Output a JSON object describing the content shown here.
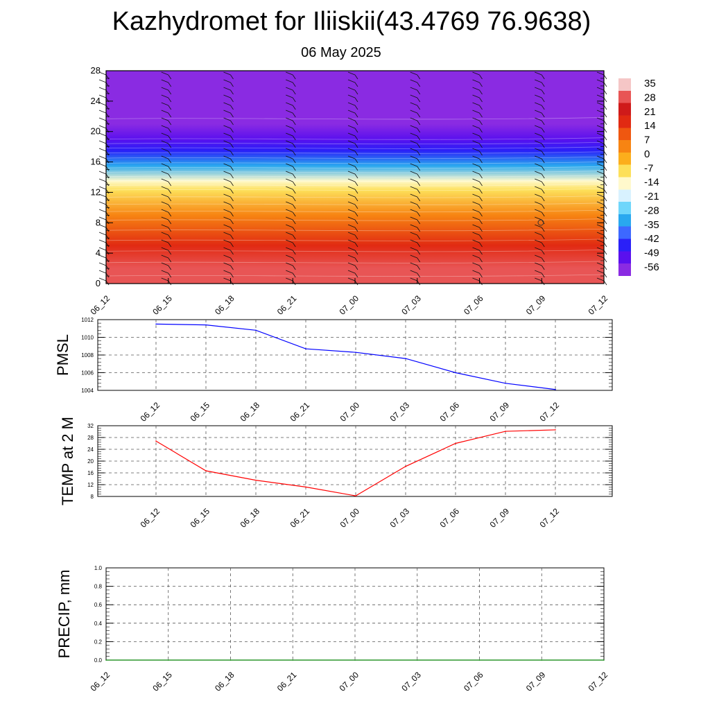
{
  "title": "Kazhydromet for Iliiskii(43.4769 76.9638)",
  "date": "06 May 2025",
  "chart_data": [
    {
      "type": "heatmap",
      "x": [
        "06_12",
        "06_15",
        "06_18",
        "06_21",
        "07_00",
        "07_03",
        "07_06",
        "07_09",
        "07_12"
      ],
      "ylim": [
        0,
        28
      ],
      "yticks": [
        "0",
        "4",
        "8",
        "12",
        "16",
        "20",
        "24",
        "28"
      ],
      "colorbar_labels": [
        "35",
        "28",
        "21",
        "14",
        "7",
        "0",
        "-7",
        "-14",
        "-21",
        "-28",
        "-35",
        "-42",
        "-49",
        "-56"
      ],
      "colorbar_range": [
        -60,
        37
      ],
      "colorbar_colors": [
        "#8a2be2",
        "#5a10ee",
        "#2a20f8",
        "#3d68ff",
        "#29a8ef",
        "#6fd6fb",
        "#d8f2ff",
        "#fff9cc",
        "#fde05a",
        "#fcae1c",
        "#f78412",
        "#ef5710",
        "#e12a12",
        "#cf1a1a",
        "#e85555",
        "#f5c6c6"
      ],
      "temperature_layers": [
        {
          "height": 0,
          "value": 30
        },
        {
          "height": 2,
          "value": 26
        },
        {
          "height": 5,
          "value": 18
        },
        {
          "height": 9,
          "value": 6
        },
        {
          "height": 12.3,
          "value": -8
        },
        {
          "height": 13.5,
          "value": -16
        },
        {
          "height": 15.5,
          "value": -30
        },
        {
          "height": 17.5,
          "value": -42
        },
        {
          "height": 19,
          "value": -52
        },
        {
          "height": 21,
          "value": -55
        },
        {
          "height": 23,
          "value": -58
        },
        {
          "height": 28,
          "value": -59
        }
      ],
      "grid": false
    },
    {
      "type": "line",
      "ylabel": "PMSL",
      "x": [
        "06_12",
        "06_15",
        "06_18",
        "06_21",
        "07_00",
        "07_03",
        "07_06",
        "07_09",
        "07_12"
      ],
      "yticks": [
        "1004",
        "1006",
        "1008",
        "1010",
        "1012"
      ],
      "ylim": [
        1004,
        1012
      ],
      "series": [
        {
          "values": [
            1011.5,
            1011.4,
            1010.8,
            1008.7,
            1008.3,
            1007.6,
            1006.0,
            1004.8,
            1004.1
          ],
          "color": "#0000ff"
        }
      ],
      "grid": true
    },
    {
      "type": "line",
      "ylabel": "TEMP at 2 M",
      "x": [
        "06_12",
        "06_15",
        "06_18",
        "06_21",
        "07_00",
        "07_03",
        "07_06",
        "07_09",
        "07_12"
      ],
      "yticks": [
        "8",
        "12",
        "16",
        "20",
        "24",
        "28",
        "32"
      ],
      "ylim": [
        8,
        32
      ],
      "series": [
        {
          "values": [
            26.8,
            16.7,
            13.5,
            11.2,
            8.2,
            18.2,
            26.0,
            30.1,
            30.6
          ],
          "color": "#ff0000"
        }
      ],
      "grid": true
    },
    {
      "type": "line",
      "ylabel": "PRECIP, mm",
      "x": [
        "06_12",
        "06_15",
        "06_18",
        "06_21",
        "07_00",
        "07_03",
        "07_06",
        "07_09",
        "07_12"
      ],
      "yticks": [
        "0.0",
        "0.2",
        "0.4",
        "0.6",
        "0.8",
        "1.0"
      ],
      "ylim": [
        0,
        1
      ],
      "series": [
        {
          "values": [
            0,
            0,
            0,
            0,
            0,
            0,
            0,
            0,
            0
          ],
          "color": "#008000"
        }
      ],
      "grid": true
    }
  ]
}
